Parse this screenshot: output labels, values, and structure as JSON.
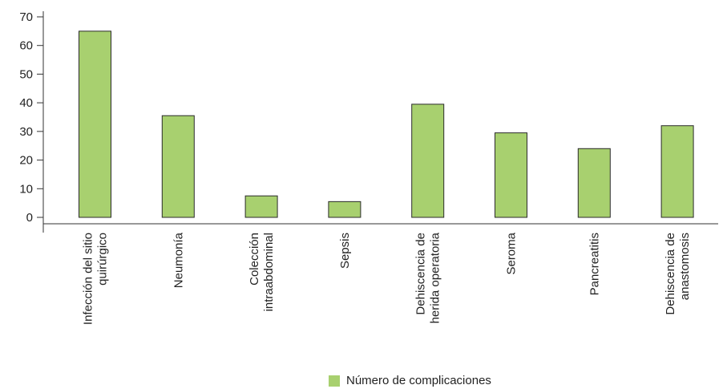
{
  "chart_data": {
    "type": "bar",
    "categories": [
      [
        "Infección del sitio",
        "quirúrgico"
      ],
      [
        "Neumonía"
      ],
      [
        "Colección",
        "intraabdominal"
      ],
      [
        "Sepsis"
      ],
      [
        "Dehiscencia de",
        "herida operatoria"
      ],
      [
        "Seroma"
      ],
      [
        "Pancreatitis"
      ],
      [
        "Dehiscencia de",
        "anastomosis"
      ]
    ],
    "series": [
      {
        "name": "Número de complicaciones",
        "values": [
          65,
          35.5,
          7.5,
          5.5,
          39.5,
          29.5,
          24,
          32
        ]
      }
    ],
    "ylim": [
      0,
      70
    ],
    "yticks": [
      0,
      10,
      20,
      30,
      40,
      50,
      60,
      70
    ],
    "grid": false,
    "legend_position": "bottom-center",
    "colors": {
      "bar_fill": "#a8d06f",
      "bar_stroke": "#2b2b2b",
      "axis": "#333333"
    }
  }
}
